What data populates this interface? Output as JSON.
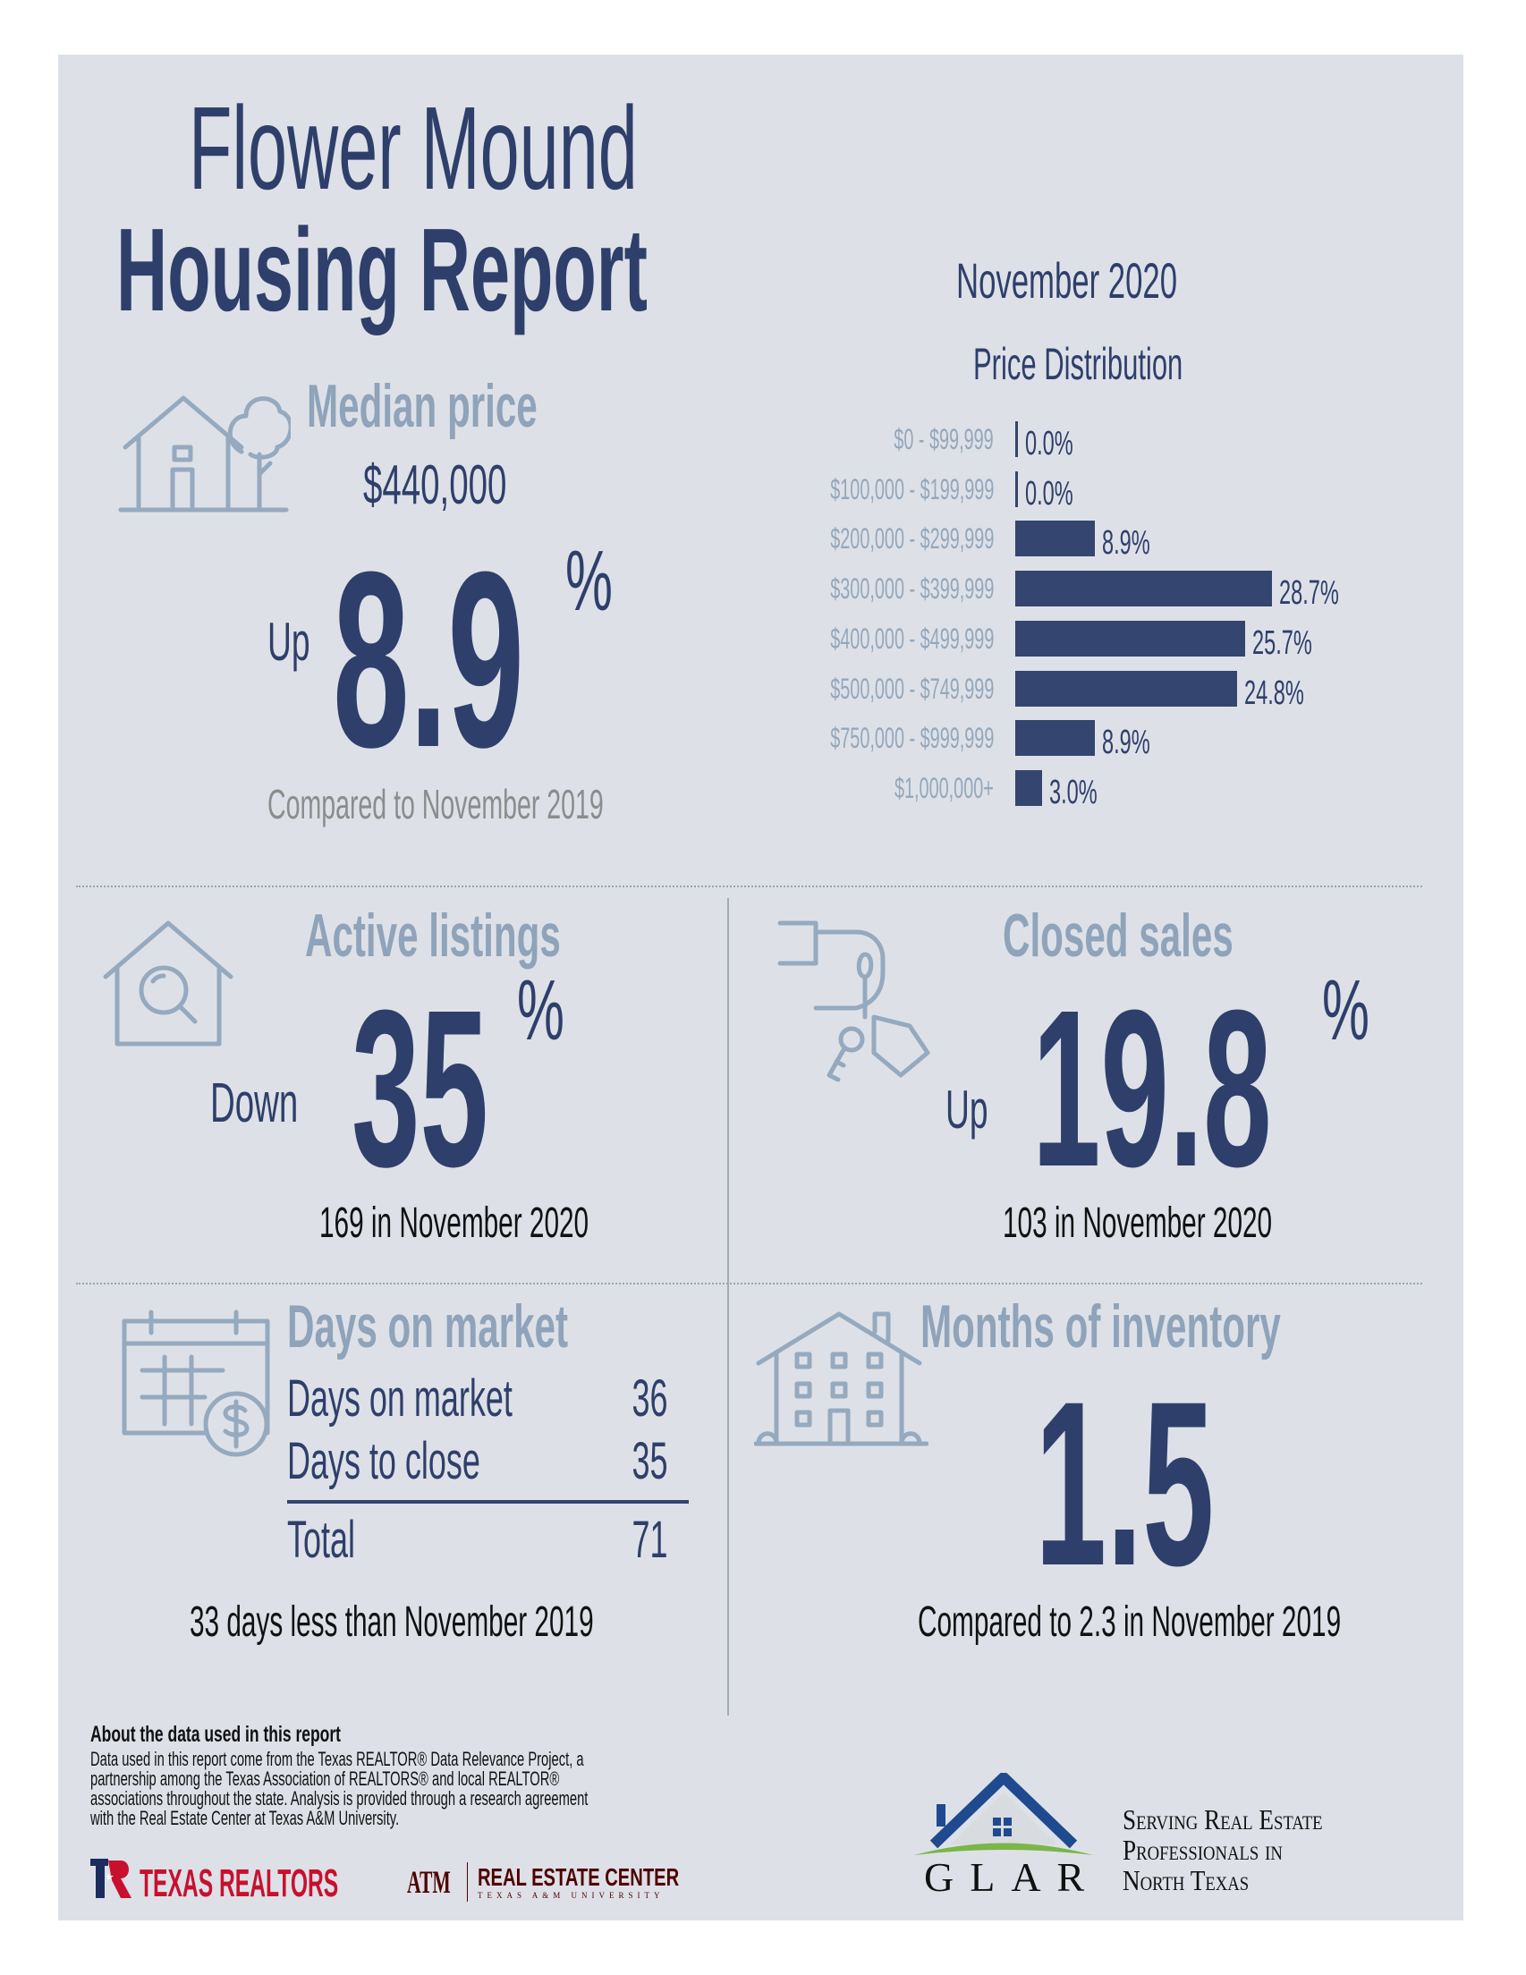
{
  "header": {
    "title_line1": "Flower Mound",
    "title_line2": "Housing Report",
    "period": "November 2020"
  },
  "colors": {
    "navy": "#2f3f6b",
    "steel": "#8fa3ba",
    "background": "#dde1e7",
    "bar": "#34456f"
  },
  "median_price": {
    "title": "Median price",
    "value": "$440,000",
    "direction": "Up",
    "change": "8.9",
    "unit": "%",
    "note": "Compared to November 2019",
    "icon": "house-with-tree-icon"
  },
  "chart_data": {
    "type": "bar",
    "orientation": "horizontal",
    "title": "Price Distribution",
    "categories": [
      "$0 - $99,999",
      "$100,000 - $199,999",
      "$200,000 - $299,999",
      "$300,000 - $399,999",
      "$400,000 - $499,999",
      "$500,000 - $749,999",
      "$750,000 - $999,999",
      "$1,000,000+"
    ],
    "values": [
      0.0,
      0.0,
      8.9,
      28.7,
      25.7,
      24.8,
      8.9,
      3.0
    ],
    "value_labels": [
      "0.0%",
      "0.0%",
      "8.9%",
      "28.7%",
      "25.7%",
      "24.8%",
      "8.9%",
      "3.0%"
    ],
    "grid": false
  },
  "active_listings": {
    "title": "Active listings",
    "direction": "Down",
    "change": "35",
    "unit": "%",
    "note": "169 in November 2020",
    "icon": "house-search-icon"
  },
  "closed_sales": {
    "title": "Closed sales",
    "direction": "Up",
    "change": "19.8",
    "unit": "%",
    "note": "103 in November 2020",
    "icon": "hand-with-keys-icon"
  },
  "days_on_market": {
    "title": "Days on market",
    "rows": [
      {
        "label": "Days on market",
        "value": "36"
      },
      {
        "label": "Days to close",
        "value": "35"
      }
    ],
    "total_label": "Total",
    "total_value": "71",
    "note": "33 days less than November 2019",
    "icon": "calendar-dollar-icon"
  },
  "months_inventory": {
    "title": "Months of inventory",
    "value": "1.5",
    "note": "Compared to 2.3 in November 2019",
    "icon": "building-icon"
  },
  "footer": {
    "about_title": "About the data used in this report",
    "about_lines": [
      "Data used in this report come from the Texas REALTOR® Data Relevance Project, a",
      "partnership among the Texas Association of REALTORS® and local REALTOR®",
      "associations throughout the state. Analysis is provided through a research agreement",
      "with the Real Estate Center at Texas A&M University."
    ],
    "logo_texas_realtors": "TEXAS REALTORS",
    "logo_rec": "REAL ESTATE CENTER",
    "logo_rec_sub": "TEXAS A&M UNIVERSITY",
    "logo_atm": "ATM",
    "glar": "GLAR",
    "tagline": [
      "Serving Real Estate",
      "Professionals in",
      "North Texas"
    ]
  }
}
